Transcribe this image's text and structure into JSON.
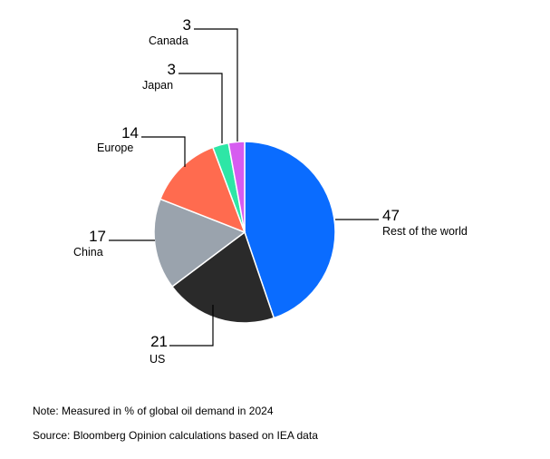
{
  "chart_data": {
    "type": "pie",
    "categories": [
      "Rest of the world",
      "US",
      "China",
      "Europe",
      "Japan",
      "Canada"
    ],
    "values": [
      47,
      21,
      17,
      14,
      3,
      3
    ],
    "colors": [
      "#0a6cff",
      "#2a2a2a",
      "#9aa3ad",
      "#ff6b4f",
      "#2ee6a6",
      "#d65cf0"
    ],
    "unit": "% of global oil demand in 2024"
  },
  "footer": {
    "note": "Note: Measured in % of global oil demand in 2024",
    "source": "Source: Bloomberg Opinion calculations based on IEA data"
  }
}
